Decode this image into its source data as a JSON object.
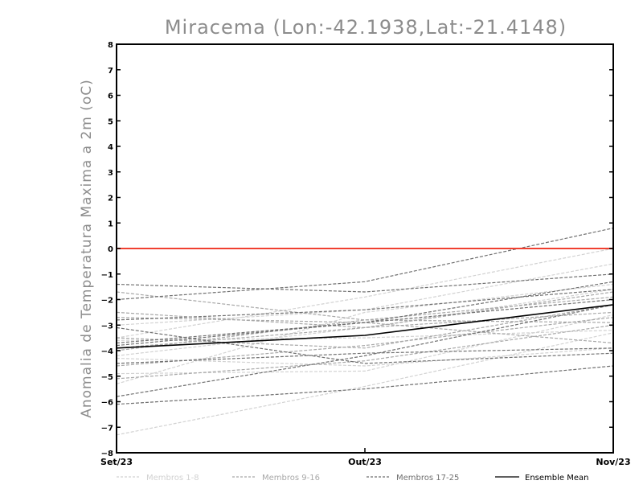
{
  "chart_data": {
    "type": "line",
    "title": "Miracema (Lon:-42.1938,Lat:-21.4148)",
    "ylabel": "Anomalia de Temperatura Maxima a 2m (oC)",
    "xlabel": "",
    "categories": [
      "Set/23",
      "Out/23",
      "Nov/23"
    ],
    "ylim": [
      -8,
      8
    ],
    "yticks": [
      -8,
      -7,
      -6,
      -5,
      -4,
      -3,
      -2,
      -1,
      0,
      1,
      2,
      3,
      4,
      5,
      6,
      7,
      8
    ],
    "reference_line": {
      "value": 0,
      "color": "#f04030"
    },
    "legend_placement": "bottom",
    "legend": [
      {
        "label": "Membros 1-8",
        "color": "#d2d2d2",
        "style": "dashed"
      },
      {
        "label": "Membros 9-16",
        "color": "#a8a8a8",
        "style": "dashed"
      },
      {
        "label": "Membros 17-25",
        "color": "#707070",
        "style": "dashed"
      },
      {
        "label": "Ensemble Mean",
        "color": "#000000",
        "style": "solid"
      }
    ],
    "groups": [
      {
        "color": "#d2d2d2",
        "style": "dashed",
        "series": [
          {
            "values": [
              -7.3,
              -5.4,
              -3.3
            ]
          },
          {
            "values": [
              -4.2,
              -3.1,
              -1.6
            ]
          },
          {
            "values": [
              -3.6,
              -3.5,
              -3.2
            ]
          },
          {
            "values": [
              -5.3,
              -2.5,
              -1.4
            ]
          },
          {
            "values": [
              -3.0,
              -2.4,
              -0.6
            ]
          },
          {
            "values": [
              -4.3,
              -4.6,
              -3.9
            ]
          },
          {
            "values": [
              -3.5,
              -1.9,
              0.0
            ]
          },
          {
            "values": [
              -4.9,
              -4.8,
              -2.6
            ]
          }
        ]
      },
      {
        "color": "#a8a8a8",
        "style": "dashed",
        "series": [
          {
            "values": [
              -1.7,
              -2.8,
              -2.9
            ]
          },
          {
            "values": [
              -4.0,
              -2.8,
              -1.9
            ]
          },
          {
            "values": [
              -2.7,
              -2.9,
              -3.7
            ]
          },
          {
            "values": [
              -3.5,
              -3.9,
              -2.2
            ]
          },
          {
            "values": [
              -3.9,
              -3.1,
              -1.7
            ]
          },
          {
            "values": [
              -5.1,
              -4.4,
              -3.0
            ]
          },
          {
            "values": [
              -2.5,
              -3.1,
              -2.5
            ]
          },
          {
            "values": [
              -4.6,
              -3.8,
              -2.7
            ]
          }
        ]
      },
      {
        "color": "#707070",
        "style": "dashed",
        "series": [
          {
            "values": [
              -2.0,
              -1.3,
              0.8
            ]
          },
          {
            "values": [
              -5.8,
              -4.2,
              -2.2
            ]
          },
          {
            "values": [
              -6.1,
              -5.5,
              -4.6
            ]
          },
          {
            "values": [
              -3.7,
              -2.9,
              -1.3
            ]
          },
          {
            "values": [
              -4.5,
              -4.1,
              -3.9
            ]
          },
          {
            "values": [
              -3.1,
              -4.5,
              -4.1
            ]
          },
          {
            "values": [
              -1.4,
              -1.7,
              -1.0
            ]
          },
          {
            "values": [
              -2.8,
              -2.4,
              -1.6
            ]
          },
          {
            "values": [
              -3.8,
              -2.9,
              -2.0
            ]
          }
        ]
      }
    ],
    "ensemble_mean": {
      "color": "#000000",
      "values": [
        -3.9,
        -3.4,
        -2.2
      ]
    }
  }
}
